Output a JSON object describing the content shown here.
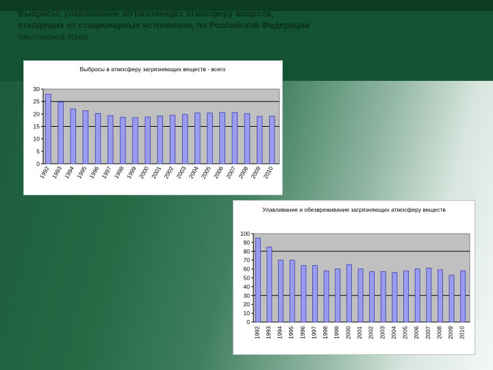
{
  "slide": {
    "title_line1": "Выбросы, улавливание загрязняющих атмосферу веществ,",
    "title_line2": "отходящих от стационарных источников, по Российской Федерации",
    "subtitle": "(миллионов тонн)"
  },
  "colors": {
    "header": "#135233",
    "bar_fill": "#9a9cf0",
    "bar_stroke": "#3a3aa8",
    "plot_bg": "#c0c0c0",
    "gridline": "#000000"
  },
  "chart_data": [
    {
      "type": "bar",
      "title": "Выбросы в атмосферу загрязняющих веществ - всего",
      "categories": [
        "1992",
        "1993",
        "1994",
        "1995",
        "1996",
        "1997",
        "1998",
        "1999",
        "2000",
        "2001",
        "2002",
        "2003",
        "2004",
        "2005",
        "2006",
        "2007",
        "2008",
        "2009",
        "2010"
      ],
      "values": [
        28,
        24.8,
        22,
        21.3,
        20.2,
        19.3,
        18.7,
        18.5,
        18.8,
        19.2,
        19.5,
        19.8,
        20.4,
        20.4,
        20.6,
        20.6,
        20.1,
        19,
        19.1
      ],
      "ylim": [
        0,
        30
      ],
      "yticks": [
        0,
        5,
        10,
        15,
        20,
        25,
        30
      ],
      "gridlines": [
        15,
        25
      ],
      "xlabel": "",
      "ylabel": ""
    },
    {
      "type": "bar",
      "title": "Улавливание и обезвреживание загрязняющих атмосферу веществ",
      "categories": [
        "1992",
        "1993",
        "1994",
        "1995",
        "1996",
        "1997",
        "1998",
        "1999",
        "2000",
        "2001",
        "2002",
        "2003",
        "2004",
        "2005",
        "2006",
        "2007",
        "2008",
        "2009",
        "2010"
      ],
      "values": [
        95,
        85,
        70,
        70,
        64,
        64,
        58,
        60,
        65,
        60,
        57,
        57,
        56,
        58,
        60,
        61,
        59,
        53,
        58
      ],
      "ylim": [
        0,
        100
      ],
      "yticks": [
        0,
        10,
        20,
        30,
        40,
        50,
        60,
        70,
        80,
        90,
        100
      ],
      "gridlines": [
        30,
        80
      ],
      "xlabel": "",
      "ylabel": ""
    }
  ]
}
